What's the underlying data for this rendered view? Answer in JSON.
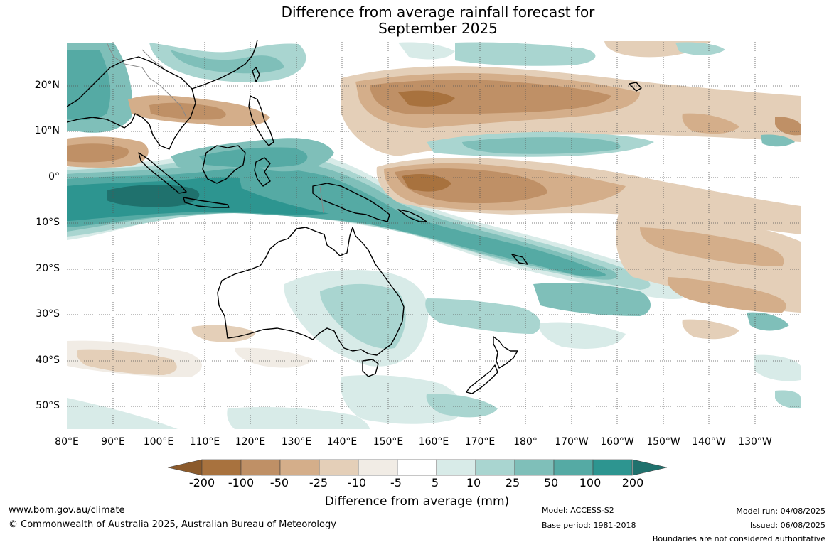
{
  "title_line1": "Difference from average rainfall forecast for",
  "title_line2": "September 2025",
  "lat_labels": [
    "20°N",
    "10°N",
    "0°",
    "10°S",
    "20°S",
    "30°S",
    "40°S",
    "50°S"
  ],
  "lon_labels": [
    "80°E",
    "90°E",
    "100°E",
    "110°E",
    "120°E",
    "130°E",
    "140°E",
    "150°E",
    "160°E",
    "170°E",
    "180°",
    "170°W",
    "160°W",
    "150°W",
    "140°W",
    "130°W"
  ],
  "colorbar": {
    "labels": [
      "-200",
      "-100",
      "-50",
      "-25",
      "-10",
      "-5",
      "5",
      "10",
      "25",
      "50",
      "100",
      "200"
    ],
    "colors": [
      "#8b5a2b",
      "#a8723e",
      "#bf9066",
      "#d4ae8a",
      "#e4cfb8",
      "#f1ece5",
      "#ffffff",
      "#d8ebe8",
      "#a9d5d0",
      "#7fbfb9",
      "#55aaa4",
      "#2d9590",
      "#1f716d"
    ],
    "title": "Difference from average (mm)"
  },
  "footer": {
    "website": "www.bom.gov.au/climate",
    "copyright": "© Commonwealth of Australia 2025, Australian Bureau of Meteorology",
    "model": "Model: ACCESS-S2",
    "base_period": "Base period: 1981-2018",
    "model_run": "Model run: 04/08/2025",
    "issued": "Issued: 06/08/2025",
    "boundaries": "Boundaries are not considered authoritative"
  }
}
